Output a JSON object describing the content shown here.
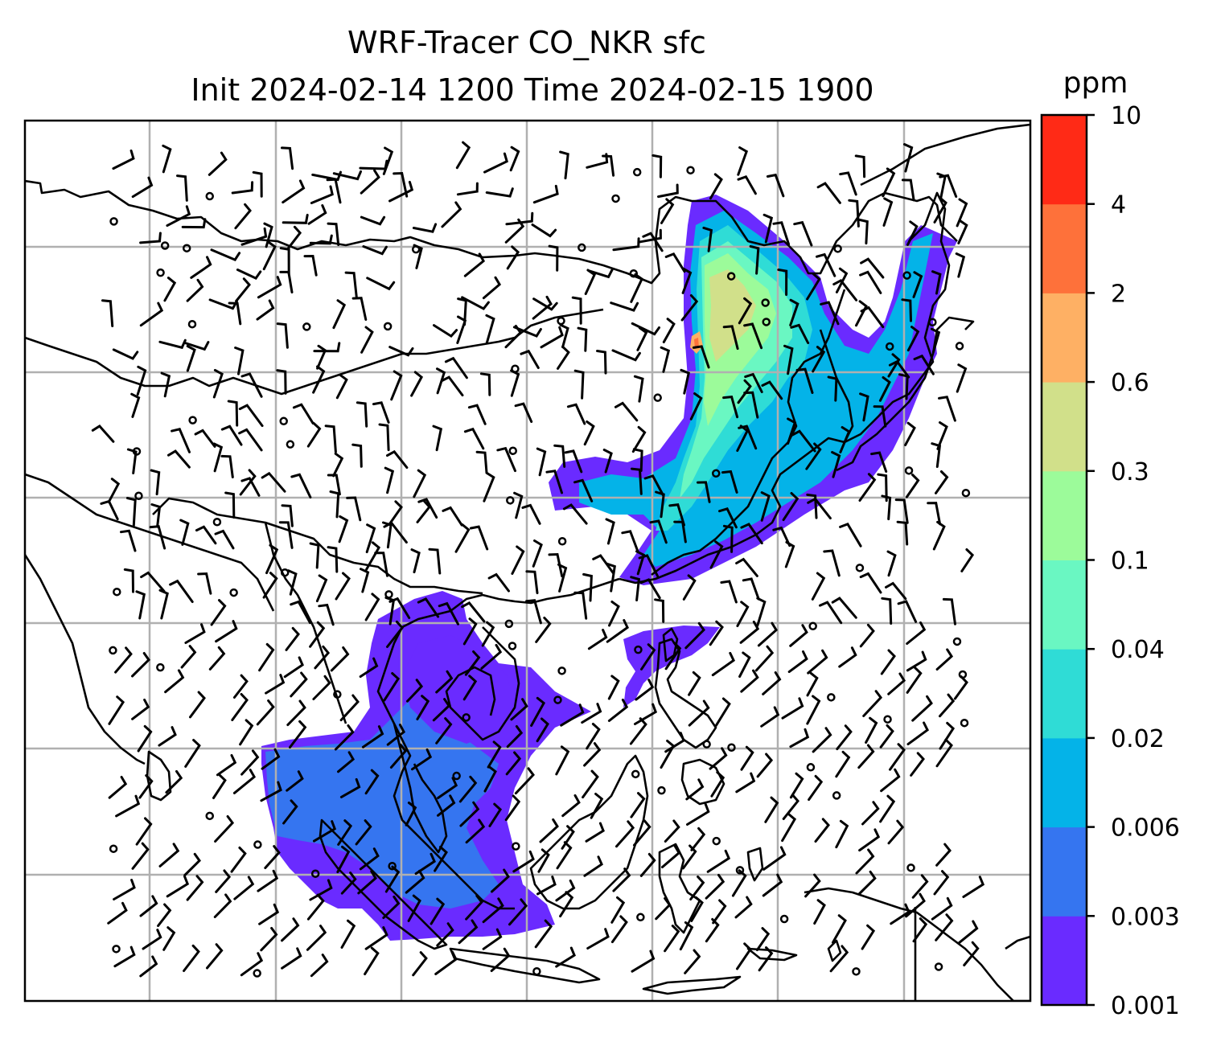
{
  "figure": {
    "title_line1": "WRF-Tracer CO_NKR sfc",
    "title_line2": "Init 2024-02-14 1200 Time 2024-02-15 1900"
  },
  "colorbar": {
    "unit": "ppm",
    "levels": [
      "0.001",
      "0.003",
      "0.006",
      "0.02",
      "0.04",
      "0.1",
      "0.3",
      "0.6",
      "2",
      "4",
      "10"
    ],
    "colors": [
      "#6a2bff",
      "#3575f0",
      "#04b3e8",
      "#2fdcd6",
      "#6af7c2",
      "#9cfb9a",
      "#d1e08a",
      "#feb064",
      "#fe713a",
      "#ff2a16"
    ]
  },
  "map": {
    "graticule": true,
    "coastline_color": "#000000",
    "grid_color": "#b0b0b0",
    "wind_barb_color": "#000000"
  }
}
